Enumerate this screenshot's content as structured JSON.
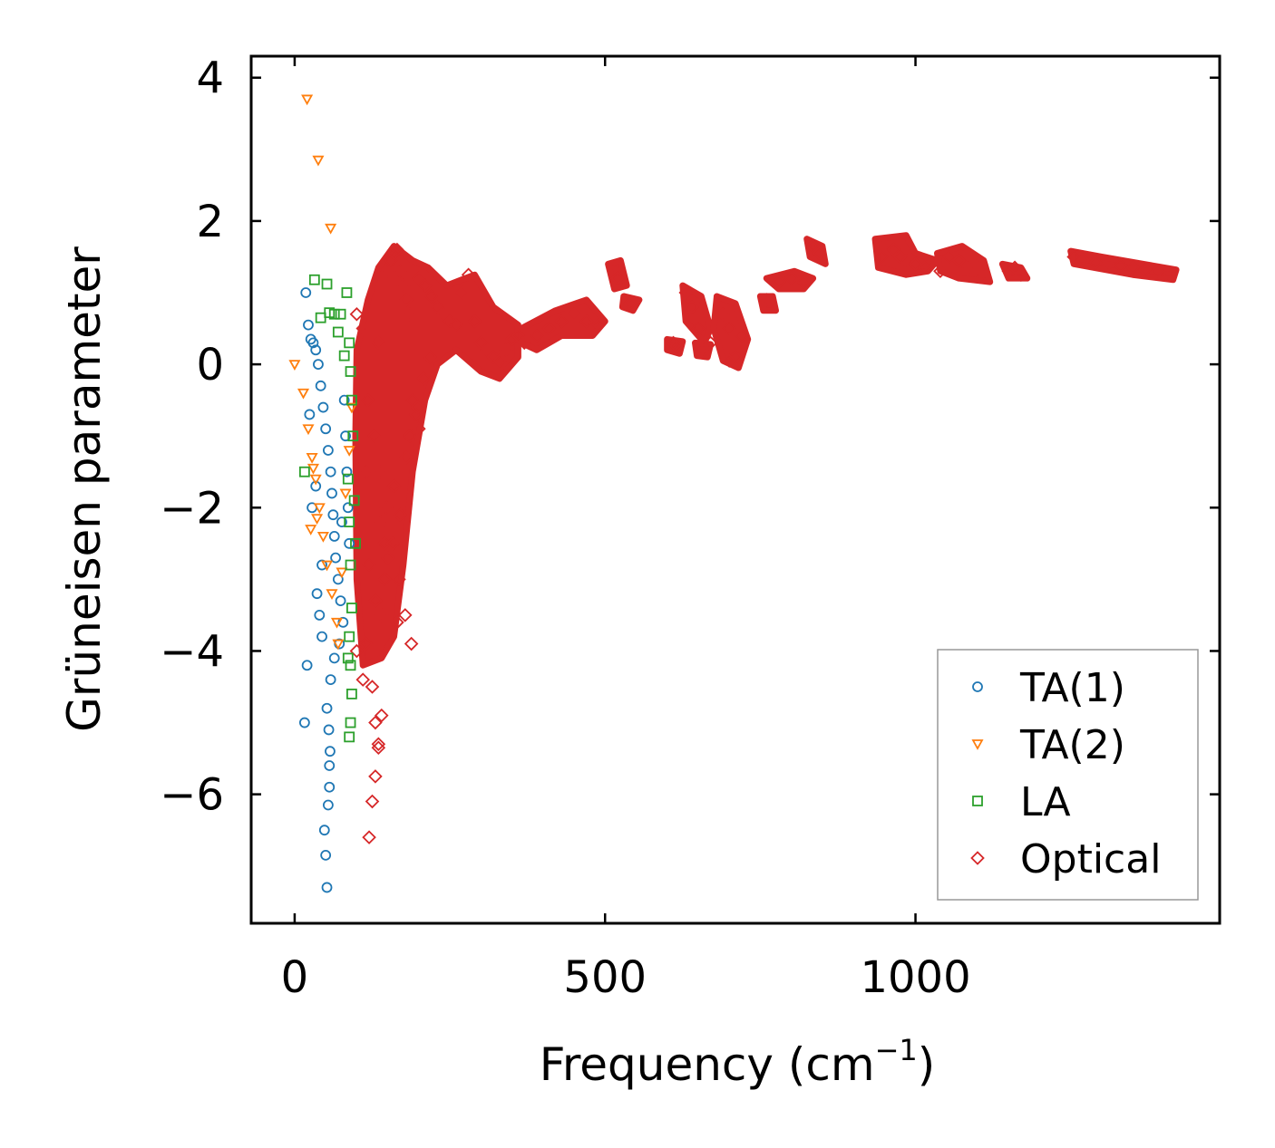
{
  "chart_data": {
    "type": "scatter",
    "title": "",
    "xlabel": "Frequency (cm",
    "xlabel_sup": "−1",
    "xlabel_close": ")",
    "ylabel": "Grüneisen parameter",
    "xlim": [
      -70,
      1490
    ],
    "ylim": [
      -7.8,
      4.3
    ],
    "xticks": [
      0,
      500,
      1000
    ],
    "xtick_labels": [
      "0",
      "500",
      "1000"
    ],
    "yticks": [
      -6,
      -4,
      -2,
      0,
      2,
      4
    ],
    "ytick_labels": [
      "−6",
      "−4",
      "−2",
      "0",
      "2",
      "4"
    ],
    "tick_direction": "in",
    "grid": false,
    "legend_position": "lower-right",
    "series": [
      {
        "name": "TA(1)",
        "marker": "circle",
        "color": "#1f77b4",
        "x": [
          18,
          22,
          26,
          30,
          34,
          38,
          42,
          46,
          50,
          54,
          58,
          60,
          62,
          64,
          66,
          70,
          74,
          78,
          80,
          82,
          84,
          86,
          88,
          52,
          55,
          57,
          44,
          40,
          36,
          28,
          20,
          16,
          48,
          50,
          52,
          54,
          56,
          56,
          58,
          24,
          34,
          44,
          64,
          72,
          76
        ],
        "y": [
          1.0,
          0.55,
          0.35,
          0.3,
          0.2,
          0.0,
          -0.3,
          -0.6,
          -0.9,
          -1.2,
          -1.5,
          -1.8,
          -2.1,
          -2.4,
          -2.7,
          -3.0,
          -3.3,
          -3.6,
          -0.5,
          -1.0,
          -1.5,
          -2.0,
          -2.5,
          -4.8,
          -5.1,
          -5.4,
          -3.8,
          -3.5,
          -3.2,
          -2.0,
          -4.2,
          -5.0,
          -6.5,
          -6.85,
          -7.3,
          -6.15,
          -5.9,
          -5.6,
          -4.4,
          -0.7,
          -1.7,
          -2.8,
          -4.1,
          -3.9,
          -2.2
        ]
      },
      {
        "name": "TA(2)",
        "marker": "triangle-down",
        "color": "#ff7f0e",
        "x": [
          20,
          38,
          58,
          0,
          14,
          22,
          28,
          34,
          40,
          46,
          52,
          60,
          68,
          76,
          82,
          88,
          92,
          26,
          30,
          36,
          70
        ],
        "y": [
          3.7,
          2.85,
          1.9,
          0.0,
          -0.4,
          -0.9,
          -1.3,
          -1.6,
          -2.0,
          -2.4,
          -2.8,
          -3.2,
          -3.6,
          -2.9,
          -1.8,
          -1.2,
          -0.6,
          -2.3,
          -1.45,
          -2.15,
          -3.9
        ]
      },
      {
        "name": "LA",
        "marker": "square",
        "color": "#2ca02c",
        "x": [
          32,
          52,
          84,
          42,
          56,
          64,
          74,
          88,
          90,
          92,
          94,
          86,
          88,
          90,
          92,
          88,
          90,
          16,
          92,
          90,
          88,
          86,
          70,
          80,
          96,
          98
        ],
        "y": [
          1.18,
          1.12,
          1.0,
          0.65,
          0.72,
          0.7,
          0.7,
          0.3,
          -0.1,
          -0.5,
          -1.0,
          -1.6,
          -2.2,
          -2.8,
          -3.4,
          -3.8,
          -4.2,
          -1.5,
          -4.6,
          -5.0,
          -5.2,
          -4.1,
          0.45,
          0.12,
          -1.9,
          -2.5
        ]
      },
      {
        "name": "Optical",
        "marker": "diamond",
        "color": "#d62728",
        "x": [
          100,
          110,
          115,
          120,
          125,
          130,
          135,
          140,
          145,
          150,
          155,
          160,
          165,
          170,
          175,
          180,
          185,
          190,
          195,
          200,
          210,
          220,
          230,
          240,
          250,
          260,
          270,
          280,
          290,
          300,
          310,
          320,
          330,
          340,
          350,
          360,
          370,
          390,
          410,
          430,
          450,
          470,
          490,
          515,
          520,
          540,
          630,
          640,
          650,
          660,
          670,
          690,
          700,
          710,
          720,
          610,
          615,
          660,
          700,
          760,
          780,
          800,
          820,
          835,
          845,
          945,
          955,
          965,
          975,
          985,
          1000,
          1015,
          1040,
          1055,
          1070,
          1085,
          1100,
          1110,
          1150,
          1160,
          1170,
          1255,
          1270,
          1290,
          1310,
          1330,
          1350,
          1370,
          1390,
          1410,
          120,
          125,
          130,
          135,
          140,
          110,
          115,
          100,
          118,
          128,
          138,
          148,
          158,
          168,
          178,
          188,
          198,
          208,
          218,
          140,
          160,
          180,
          200,
          130,
          150,
          170,
          145,
          165,
          185,
          135
        ],
        "y": [
          0.7,
          0.5,
          -1.5,
          -2.8,
          -4.5,
          -5.0,
          -5.3,
          -3.5,
          -2.5,
          1.3,
          1.45,
          1.55,
          1.6,
          1.3,
          1.1,
          0.9,
          0.7,
          -0.5,
          -0.7,
          1.2,
          1.1,
          0.95,
          0.8,
          0.7,
          0.6,
          0.55,
          1.0,
          1.25,
          0.6,
          0.3,
          0.2,
          0.1,
          0.05,
          0.2,
          0.35,
          0.4,
          0.3,
          0.4,
          0.5,
          0.6,
          0.7,
          0.6,
          0.55,
          1.3,
          1.2,
          0.85,
          1.0,
          0.8,
          0.5,
          0.2,
          0.3,
          0.7,
          0.5,
          0.1,
          0.4,
          0.3,
          0.25,
          0.25,
          0.05,
          0.9,
          1.15,
          1.2,
          1.15,
          1.65,
          1.55,
          1.5,
          1.7,
          1.6,
          1.5,
          1.45,
          1.4,
          1.35,
          1.3,
          1.5,
          1.45,
          1.35,
          1.3,
          1.25,
          1.3,
          1.35,
          1.25,
          1.5,
          1.45,
          1.42,
          1.4,
          1.38,
          1.35,
          1.32,
          1.3,
          1.25,
          -6.6,
          -6.1,
          -5.75,
          -5.35,
          -4.9,
          -4.4,
          -3.9,
          -4.0,
          -0.5,
          -1.0,
          -1.5,
          -2.0,
          -2.5,
          -3.0,
          -3.5,
          -3.9,
          -0.6,
          -0.2,
          0.1,
          -2.2,
          -1.7,
          -1.3,
          -0.9,
          -3.3,
          -2.7,
          -2.1,
          -3.0,
          -3.6,
          -1.0,
          0.3
        ]
      }
    ]
  }
}
